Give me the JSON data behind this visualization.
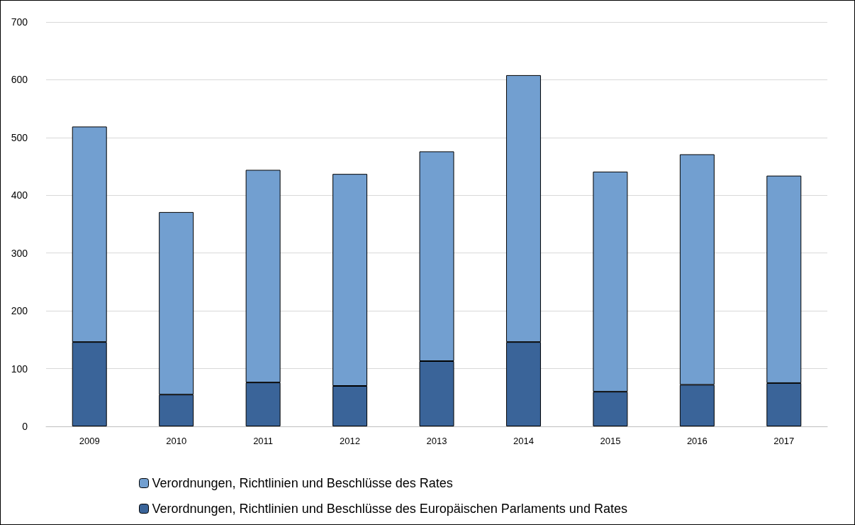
{
  "chart_data": {
    "type": "bar",
    "stacked": true,
    "categories": [
      "2009",
      "2010",
      "2011",
      "2012",
      "2013",
      "2014",
      "2015",
      "2016",
      "2017"
    ],
    "series": [
      {
        "name": "Verordnungen, Richtlinien und Beschlüsse des Europäischen Parlaments und Rates",
        "color": "#3a6499",
        "values": [
          146,
          55,
          76,
          70,
          113,
          146,
          60,
          72,
          75
        ]
      },
      {
        "name": "Verordnungen, Richtlinien und Beschlüsse des Rates",
        "color": "#729fd0",
        "values": [
          373,
          316,
          368,
          367,
          363,
          462,
          381,
          399,
          359
        ]
      }
    ],
    "ylim": [
      0,
      700
    ],
    "yticks": [
      0,
      100,
      200,
      300,
      400,
      500,
      600,
      700
    ],
    "grid": "y",
    "legend": "bottom left"
  }
}
